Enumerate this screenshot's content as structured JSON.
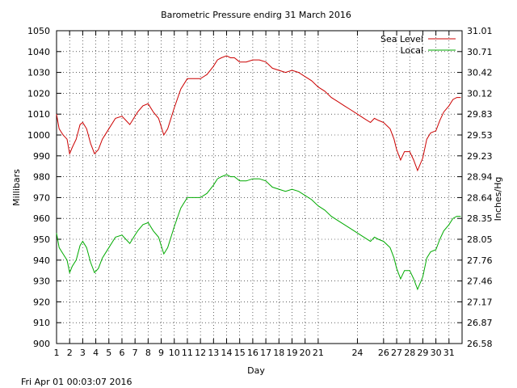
{
  "chart_data": {
    "type": "line",
    "title": "Barometric Pressure endirg 31 March 2016",
    "xlabel": "Day",
    "ylabel": "Millibars",
    "y2label": "Inches/Hg",
    "xlim": [
      1,
      32
    ],
    "ylim": [
      900,
      1050
    ],
    "y2lim": [
      26.58,
      31.01
    ],
    "x_ticks": [
      1,
      2,
      3,
      4,
      5,
      6,
      7,
      8,
      9,
      10,
      11,
      12,
      13,
      14,
      15,
      16,
      17,
      18,
      19,
      20,
      21,
      24,
      26,
      27,
      28,
      29,
      30,
      31
    ],
    "y_ticks": [
      900,
      910,
      920,
      930,
      940,
      950,
      960,
      970,
      980,
      990,
      1000,
      1010,
      1020,
      1030,
      1040,
      1050
    ],
    "y2_ticks": [
      "26.58",
      "26.87",
      "27.17",
      "27.46",
      "27.76",
      "28.05",
      "28.35",
      "28.64",
      "28.94",
      "29.23",
      "29.53",
      "29.83",
      "30.12",
      "30.42",
      "30.71",
      "31.01"
    ],
    "grid": true,
    "legend_position": "top-right",
    "footer": "Fri Apr 01 00:03:07 2016",
    "series": [
      {
        "name": "Sea Level",
        "color": "#cc0000",
        "x": [
          1.0,
          1.2,
          1.5,
          1.8,
          2.0,
          2.2,
          2.5,
          2.8,
          3.0,
          3.3,
          3.6,
          3.9,
          4.2,
          4.5,
          5.0,
          5.5,
          6.0,
          6.3,
          6.6,
          6.9,
          7.2,
          7.6,
          8.0,
          8.4,
          8.8,
          9.2,
          9.5,
          10.0,
          10.5,
          11.0,
          11.5,
          12.0,
          12.5,
          13.0,
          13.3,
          13.6,
          14.0,
          14.3,
          14.6,
          15.0,
          15.5,
          16.0,
          16.5,
          17.0,
          17.5,
          18.0,
          18.5,
          19.0,
          19.5,
          20.0,
          20.5,
          21.0,
          21.5,
          22.0,
          22.5,
          23.0,
          23.5,
          24.0,
          24.5,
          25.0,
          25.3,
          25.6,
          26.0,
          26.5,
          26.8,
          27.0,
          27.3,
          27.6,
          28.0,
          28.3,
          28.6,
          29.0,
          29.3,
          29.6,
          30.0,
          30.3,
          30.6,
          31.0,
          31.3,
          31.6,
          31.9
        ],
        "values": [
          1010,
          1003,
          1000,
          998,
          991,
          994,
          998,
          1005,
          1006,
          1003,
          996,
          991,
          993,
          998,
          1003,
          1008,
          1009,
          1007,
          1005,
          1008,
          1011,
          1014,
          1015,
          1011,
          1008,
          1000,
          1003,
          1013,
          1022,
          1027,
          1027,
          1027,
          1029,
          1033,
          1036,
          1037,
          1038,
          1037,
          1037,
          1035,
          1035,
          1036,
          1036,
          1035,
          1032,
          1031,
          1030,
          1031,
          1030,
          1028,
          1026,
          1023,
          1021,
          1018,
          1016,
          1014,
          1012,
          1010,
          1008,
          1006,
          1008,
          1007,
          1006,
          1003,
          998,
          993,
          988,
          992,
          992,
          988,
          983,
          989,
          998,
          1001,
          1002,
          1007,
          1011,
          1014,
          1017,
          1018,
          1018
        ]
      },
      {
        "name": "Local",
        "color": "#00aa00",
        "x": [
          1.0,
          1.2,
          1.5,
          1.8,
          2.0,
          2.2,
          2.5,
          2.8,
          3.0,
          3.3,
          3.6,
          3.9,
          4.2,
          4.5,
          5.0,
          5.5,
          6.0,
          6.3,
          6.6,
          6.9,
          7.2,
          7.6,
          8.0,
          8.4,
          8.8,
          9.2,
          9.5,
          10.0,
          10.5,
          11.0,
          11.5,
          12.0,
          12.5,
          13.0,
          13.3,
          13.6,
          14.0,
          14.3,
          14.6,
          15.0,
          15.5,
          16.0,
          16.5,
          17.0,
          17.5,
          18.0,
          18.5,
          19.0,
          19.5,
          20.0,
          20.5,
          21.0,
          21.5,
          22.0,
          22.5,
          23.0,
          23.5,
          24.0,
          24.5,
          25.0,
          25.3,
          25.6,
          26.0,
          26.5,
          26.8,
          27.0,
          27.3,
          27.6,
          28.0,
          28.3,
          28.6,
          29.0,
          29.3,
          29.6,
          30.0,
          30.3,
          30.6,
          31.0,
          31.3,
          31.6,
          31.9
        ],
        "values": [
          953,
          946,
          943,
          940,
          934,
          937,
          940,
          947,
          949,
          946,
          939,
          934,
          936,
          941,
          946,
          951,
          952,
          950,
          948,
          951,
          954,
          957,
          958,
          954,
          951,
          943,
          946,
          956,
          965,
          970,
          970,
          970,
          972,
          976,
          979,
          980,
          981,
          980,
          980,
          978,
          978,
          979,
          979,
          978,
          975,
          974,
          973,
          974,
          973,
          971,
          969,
          966,
          964,
          961,
          959,
          957,
          955,
          953,
          951,
          949,
          951,
          950,
          949,
          946,
          941,
          936,
          931,
          935,
          935,
          931,
          926,
          932,
          941,
          944,
          945,
          950,
          954,
          957,
          960,
          961,
          961
        ]
      }
    ]
  }
}
